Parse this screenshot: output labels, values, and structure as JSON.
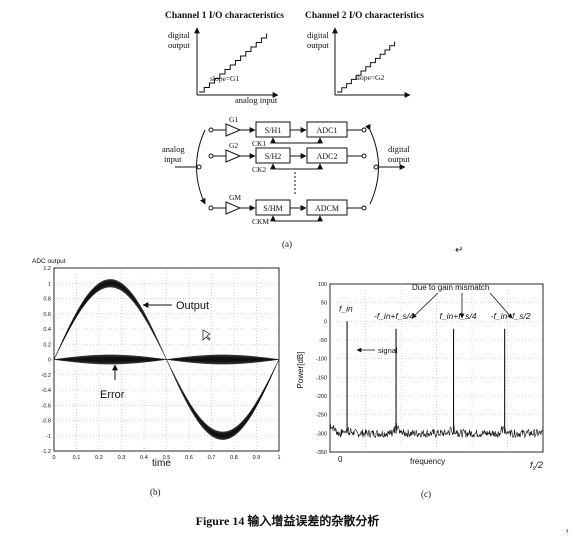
{
  "panel_a": {
    "ch1_title": "Channel 1 I/O characteristics",
    "ch2_title": "Channel 2 I/O characteristics",
    "y_label_1": "digital",
    "y_label_2": "output",
    "ch1_xlabel": "analog input",
    "ch1_slope": "slope=G1",
    "ch2_slope": "slope=G2",
    "input_label_1": "analog",
    "input_label_2": "input",
    "output_label_1": "digital",
    "output_label_2": "output",
    "channels": [
      {
        "gain": "G1",
        "sh": "S/H1",
        "adc": "ADC1",
        "ck": "CK1"
      },
      {
        "gain": "G2",
        "sh": "S/H2",
        "adc": "ADC2",
        "ck": "CK2"
      },
      {
        "gain": "GM",
        "sh": "S/HM",
        "adc": "ADCM",
        "ck": "CKM"
      }
    ],
    "panel_label": "(a)"
  },
  "panel_b": {
    "panel_label": "(b)",
    "chart_data": {
      "type": "line",
      "title": "ADC output",
      "xlabel": "time",
      "ylabel": "",
      "xlim": [
        0,
        1
      ],
      "ylim": [
        -1.2,
        1.2
      ],
      "x_ticks": [
        "0",
        "0.1",
        "0.2",
        "0.3",
        "0.4",
        "0.5",
        "0.6",
        "0.7",
        "0.8",
        "0.9",
        "1"
      ],
      "y_ticks": [
        "1.2",
        "1",
        "0.8",
        "0.6",
        "0.4",
        "0.2",
        "0",
        "-0.2",
        "-0.4",
        "-0.6",
        "-0.8",
        "-1",
        "-1.2"
      ],
      "series": [
        {
          "name": "Output",
          "function": "sin(2*pi*t)",
          "amplitude": 1.0
        },
        {
          "name": "Error",
          "function": "error_envelope",
          "amplitude": 0.06
        }
      ],
      "annotations": [
        "Output",
        "Error"
      ],
      "grid": true
    }
  },
  "panel_c": {
    "panel_label": "(c)",
    "chart_data": {
      "type": "line",
      "xlabel": "frequency",
      "ylabel": "Power[dB]",
      "ylim": [
        -350,
        100
      ],
      "x_end_label": "fs/2",
      "y_ticks": [
        "100",
        "50",
        "0",
        "-50",
        "-100",
        "-150",
        "-200",
        "-250",
        "-300",
        "-350"
      ],
      "noise_floor_db": -300,
      "spikes": [
        {
          "label": "f_in",
          "x": 0.08,
          "db": 0
        },
        {
          "label": "-f_in+f_s/4",
          "x": 0.31,
          "db": -20
        },
        {
          "label": "f_in+f_s/4",
          "x": 0.58,
          "db": -20
        },
        {
          "label": "-f_in+f_s/2",
          "x": 0.82,
          "db": -20
        }
      ],
      "annotations": [
        "Due to gain mismatch",
        "signal"
      ],
      "grid": true
    }
  },
  "caption": "Figure 14 输入增益误差的杂散分析"
}
